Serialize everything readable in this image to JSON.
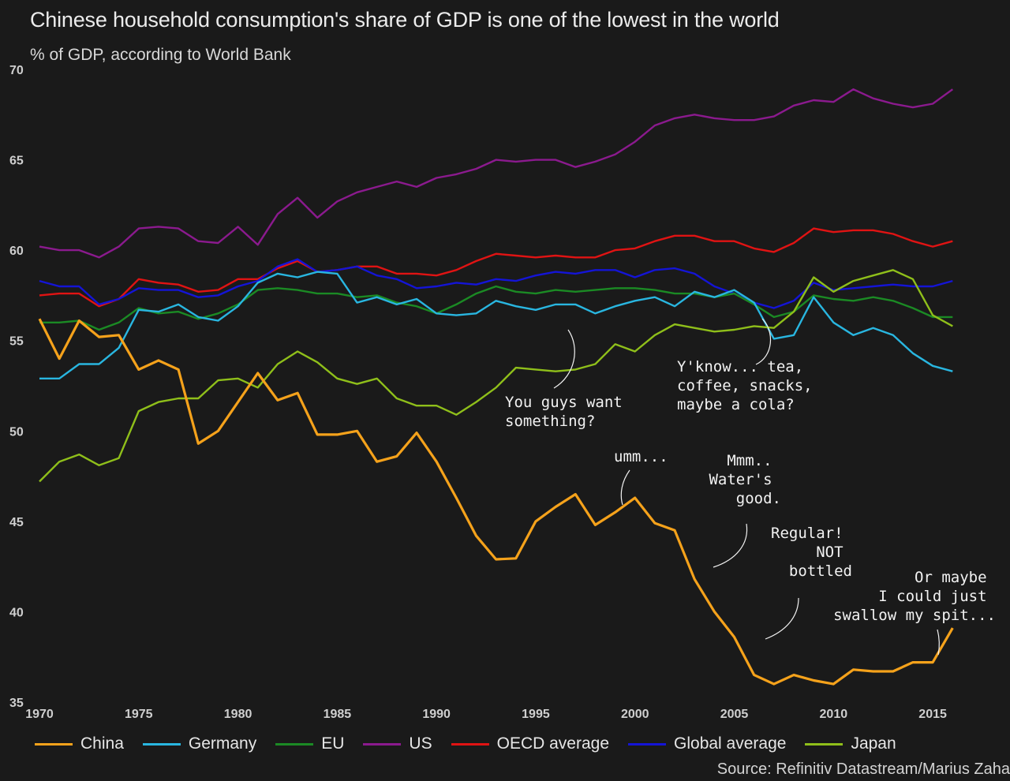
{
  "title": "Chinese household consumption's share of GDP is one of the lowest in the world",
  "subtitle": "% of GDP, according to World Bank",
  "source": "Source: Refinitiv Datastream/Marius Zaha",
  "chart_data": {
    "type": "line",
    "xlim": [
      1970,
      2017.5
    ],
    "ylim": [
      35,
      70
    ],
    "x_ticks": [
      "1970",
      "1975",
      "1980",
      "1985",
      "1990",
      "1995",
      "2000",
      "2005",
      "2010",
      "2015"
    ],
    "y_ticks": [
      "35",
      "40",
      "45",
      "50",
      "55",
      "60",
      "65",
      "70"
    ],
    "x": [
      1970,
      1971,
      1972,
      1973,
      1974,
      1975,
      1976,
      1977,
      1978,
      1979,
      1980,
      1981,
      1982,
      1983,
      1984,
      1985,
      1986,
      1987,
      1988,
      1989,
      1990,
      1991,
      1992,
      1993,
      1994,
      1995,
      1996,
      1997,
      1998,
      1999,
      2000,
      2001,
      2002,
      2003,
      2004,
      2005,
      2006,
      2007,
      2008,
      2009,
      2010,
      2011,
      2012,
      2013,
      2014,
      2015,
      2016
    ],
    "series": [
      {
        "name": "China",
        "color": "#f5a21b",
        "values": [
          56.2,
          54.0,
          56.1,
          55.2,
          55.3,
          53.4,
          53.9,
          53.4,
          49.3,
          50.0,
          51.6,
          53.2,
          51.7,
          52.1,
          49.8,
          49.8,
          50.0,
          48.3,
          48.6,
          49.9,
          48.3,
          46.3,
          44.2,
          42.9,
          42.95,
          45.0,
          45.8,
          46.5,
          44.8,
          45.5,
          46.3,
          44.9,
          44.5,
          41.8,
          40.0,
          38.6,
          36.5,
          36.0,
          36.5,
          36.2,
          36.0,
          36.8,
          36.7,
          36.7,
          37.2,
          37.2,
          39.1
        ]
      },
      {
        "name": "Germany",
        "color": "#29b6e0",
        "values": [
          52.9,
          52.9,
          53.7,
          53.7,
          54.6,
          56.7,
          56.6,
          57.0,
          56.3,
          56.1,
          56.9,
          58.2,
          58.7,
          58.5,
          58.8,
          58.7,
          57.1,
          57.4,
          57.0,
          57.3,
          56.5,
          56.4,
          56.5,
          57.2,
          56.9,
          56.7,
          57.0,
          57.0,
          56.5,
          56.9,
          57.2,
          57.4,
          56.9,
          57.7,
          57.4,
          57.8,
          57.1,
          55.1,
          55.3,
          57.4,
          56.0,
          55.3,
          55.7,
          55.3,
          54.3,
          53.6,
          53.3
        ]
      },
      {
        "name": "EU",
        "color": "#1b8a24",
        "values": [
          56.0,
          56.0,
          56.1,
          55.6,
          56.0,
          56.8,
          56.5,
          56.6,
          56.2,
          56.5,
          57.0,
          57.8,
          57.9,
          57.8,
          57.6,
          57.6,
          57.4,
          57.5,
          57.1,
          56.9,
          56.5,
          57.0,
          57.6,
          58.0,
          57.7,
          57.6,
          57.8,
          57.7,
          57.8,
          57.9,
          57.9,
          57.8,
          57.6,
          57.6,
          57.4,
          57.6,
          57.0,
          56.3,
          56.6,
          57.5,
          57.3,
          57.2,
          57.4,
          57.2,
          56.8,
          56.3,
          56.3
        ]
      },
      {
        "name": "US",
        "color": "#8b1a8e",
        "values": [
          60.2,
          60.0,
          60.0,
          59.6,
          60.2,
          61.2,
          61.3,
          61.2,
          60.5,
          60.4,
          61.3,
          60.3,
          62.0,
          62.9,
          61.8,
          62.7,
          63.2,
          63.5,
          63.8,
          63.5,
          64.0,
          64.2,
          64.5,
          65.0,
          64.9,
          65.0,
          65.0,
          64.6,
          64.9,
          65.3,
          66.0,
          66.9,
          67.3,
          67.5,
          67.3,
          67.2,
          67.2,
          67.4,
          68.0,
          68.3,
          68.2,
          68.9,
          68.4,
          68.1,
          67.9,
          68.1,
          68.9
        ]
      },
      {
        "name": "OECD average",
        "color": "#e01313",
        "values": [
          57.5,
          57.6,
          57.6,
          56.9,
          57.3,
          58.4,
          58.2,
          58.1,
          57.7,
          57.8,
          58.4,
          58.4,
          59.0,
          59.4,
          58.8,
          58.9,
          59.1,
          59.1,
          58.7,
          58.7,
          58.6,
          58.9,
          59.4,
          59.8,
          59.7,
          59.6,
          59.7,
          59.6,
          59.6,
          60.0,
          60.1,
          60.5,
          60.8,
          60.8,
          60.5,
          60.5,
          60.1,
          59.9,
          60.4,
          61.2,
          61.0,
          61.1,
          61.1,
          60.9,
          60.5,
          60.2,
          60.5
        ]
      },
      {
        "name": "Global average",
        "color": "#1414d6",
        "values": [
          58.3,
          58.0,
          58.0,
          57.0,
          57.3,
          57.9,
          57.8,
          57.8,
          57.4,
          57.5,
          58.0,
          58.3,
          59.1,
          59.5,
          58.8,
          58.9,
          59.1,
          58.6,
          58.4,
          57.9,
          58.0,
          58.2,
          58.1,
          58.4,
          58.3,
          58.6,
          58.8,
          58.7,
          58.9,
          58.9,
          58.5,
          58.9,
          59.0,
          58.7,
          58.0,
          57.6,
          57.1,
          56.8,
          57.2,
          58.2,
          57.8,
          57.9,
          58.0,
          58.1,
          58.0,
          58.0,
          58.3
        ]
      },
      {
        "name": "Japan",
        "color": "#8fbf1a",
        "values": [
          47.2,
          48.3,
          48.7,
          48.1,
          48.5,
          51.1,
          51.6,
          51.8,
          51.8,
          52.8,
          52.9,
          52.4,
          53.7,
          54.4,
          53.8,
          52.9,
          52.6,
          52.9,
          51.8,
          51.4,
          51.4,
          50.9,
          51.6,
          52.4,
          53.5,
          53.4,
          53.3,
          53.4,
          53.7,
          54.8,
          54.4,
          55.3,
          55.9,
          55.7,
          55.5,
          55.6,
          55.8,
          55.7,
          56.6,
          58.5,
          57.7,
          58.3,
          58.6,
          58.9,
          58.4,
          56.4,
          55.8
        ]
      }
    ]
  },
  "annotations": {
    "a1": [
      "You guys want",
      "something?"
    ],
    "a2": [
      "Y'know... tea,",
      "coffee, snacks,",
      "maybe a cola?"
    ],
    "a3": [
      "umm..."
    ],
    "a4": [
      "Mmm..",
      "Water's",
      "good."
    ],
    "a5": [
      "Regular!",
      "NOT",
      "bottled"
    ],
    "a6": [
      "Or maybe",
      "I could just",
      "swallow my spit..."
    ]
  }
}
